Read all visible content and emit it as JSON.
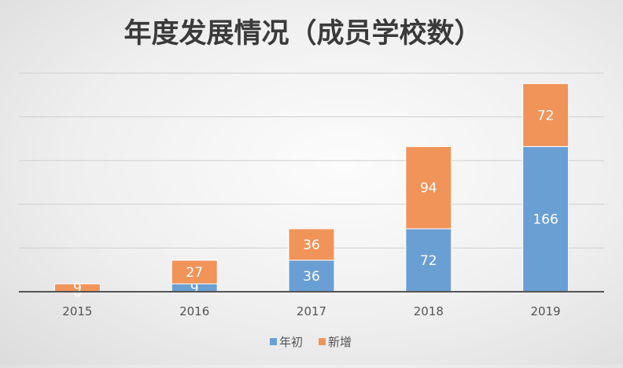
{
  "chart_data": {
    "type": "bar",
    "stacked": true,
    "title": "年度发展情况（成员学校数）",
    "categories": [
      "2015",
      "2016",
      "2017",
      "2018",
      "2019"
    ],
    "series": [
      {
        "name": "年初",
        "values": [
          0,
          9,
          36,
          72,
          166
        ],
        "color": "#6a9fd4"
      },
      {
        "name": "新增",
        "values": [
          9,
          27,
          36,
          94,
          72
        ],
        "color": "#f0945a"
      }
    ],
    "ylim": [
      0,
      250
    ],
    "grid": true,
    "legend": "bottom",
    "colors": {
      "grid": "#cfcfcf",
      "axis": "#555555",
      "title": "#3a3a3a",
      "tick_label": "#555555",
      "bar_label": "#ffffff"
    }
  }
}
